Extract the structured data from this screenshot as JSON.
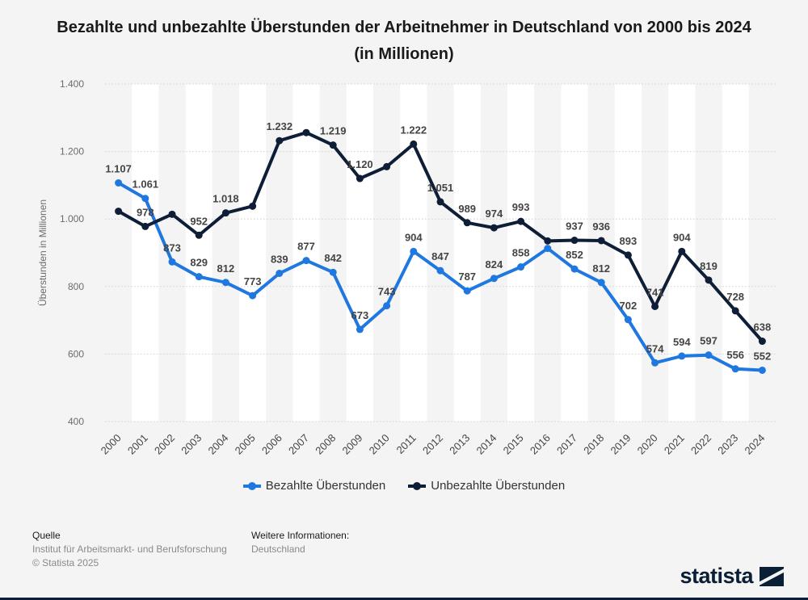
{
  "title": "Bezahlte und unbezahlte Überstunden der Arbeitnehmer in Deutschland von 2000 bis 2024 (in Millionen)",
  "chart_data": {
    "type": "line",
    "title": "Bezahlte und unbezahlte Überstunden der Arbeitnehmer in Deutschland von 2000 bis 2024 (in Millionen)",
    "xlabel": "",
    "ylabel": "Überstunden in Millionen",
    "ylim": [
      400,
      1400
    ],
    "yticks": [
      400,
      600,
      800,
      1000,
      1200,
      1400
    ],
    "ytick_labels": [
      "400",
      "600",
      "800",
      "1.000",
      "1.200",
      "1.400"
    ],
    "grid": true,
    "legend_position": "bottom",
    "categories": [
      "2000",
      "2001",
      "2002",
      "2003",
      "2004",
      "2005",
      "2006",
      "2007",
      "2008",
      "2009",
      "2010",
      "2011",
      "2012",
      "2013",
      "2014",
      "2015",
      "2016",
      "2017",
      "2018",
      "2019",
      "2020",
      "2021",
      "2022",
      "2023",
      "2024"
    ],
    "series": [
      {
        "name": "Bezahlte Überstunden",
        "color": "#1f77e0",
        "values": [
          1107,
          1061,
          873,
          829,
          812,
          773,
          839,
          877,
          842,
          673,
          743,
          904,
          847,
          787,
          824,
          858,
          913,
          852,
          812,
          702,
          574,
          594,
          597,
          556,
          552
        ],
        "labels": [
          "1.107",
          "1.061",
          "873",
          "829",
          "812",
          "773",
          "839",
          "877",
          "842",
          "673",
          "743",
          "904",
          "847",
          "787",
          "824",
          "858",
          "913",
          "852",
          "812",
          "702",
          "574",
          "594",
          "597",
          "556",
          "552"
        ],
        "show_label": [
          true,
          true,
          true,
          true,
          true,
          true,
          true,
          true,
          true,
          true,
          true,
          true,
          true,
          true,
          true,
          true,
          false,
          true,
          true,
          true,
          true,
          true,
          true,
          true,
          true
        ]
      },
      {
        "name": "Unbezahlte Überstunden",
        "color": "#0d1e36",
        "values": [
          1023,
          978,
          1014,
          952,
          1018,
          1038,
          1232,
          1256,
          1219,
          1120,
          1155,
          1222,
          1051,
          989,
          974,
          993,
          935,
          937,
          936,
          893,
          741,
          904,
          819,
          728,
          638
        ],
        "labels": [
          "1.023",
          "978",
          "1.014",
          "952",
          "1.018",
          "1.038",
          "1.232",
          "1.256",
          "1.219",
          "1.120",
          "1.155",
          "1.222",
          "1.051",
          "989",
          "974",
          "993",
          "935",
          "937",
          "936",
          "893",
          "741",
          "904",
          "819",
          "728",
          "638"
        ],
        "show_label": [
          false,
          true,
          false,
          true,
          true,
          false,
          true,
          false,
          true,
          true,
          false,
          true,
          true,
          true,
          true,
          true,
          false,
          true,
          true,
          true,
          true,
          true,
          true,
          true,
          true
        ]
      }
    ]
  },
  "footer": {
    "source_heading": "Quelle",
    "source_lines": [
      "Institut für Arbeitsmarkt- und Berufsforschung",
      "© Statista 2025"
    ],
    "info_heading": "Weitere Informationen:",
    "info_lines": [
      "Deutschland"
    ]
  },
  "brand": {
    "name": "statista",
    "color": "#0a1f35"
  }
}
